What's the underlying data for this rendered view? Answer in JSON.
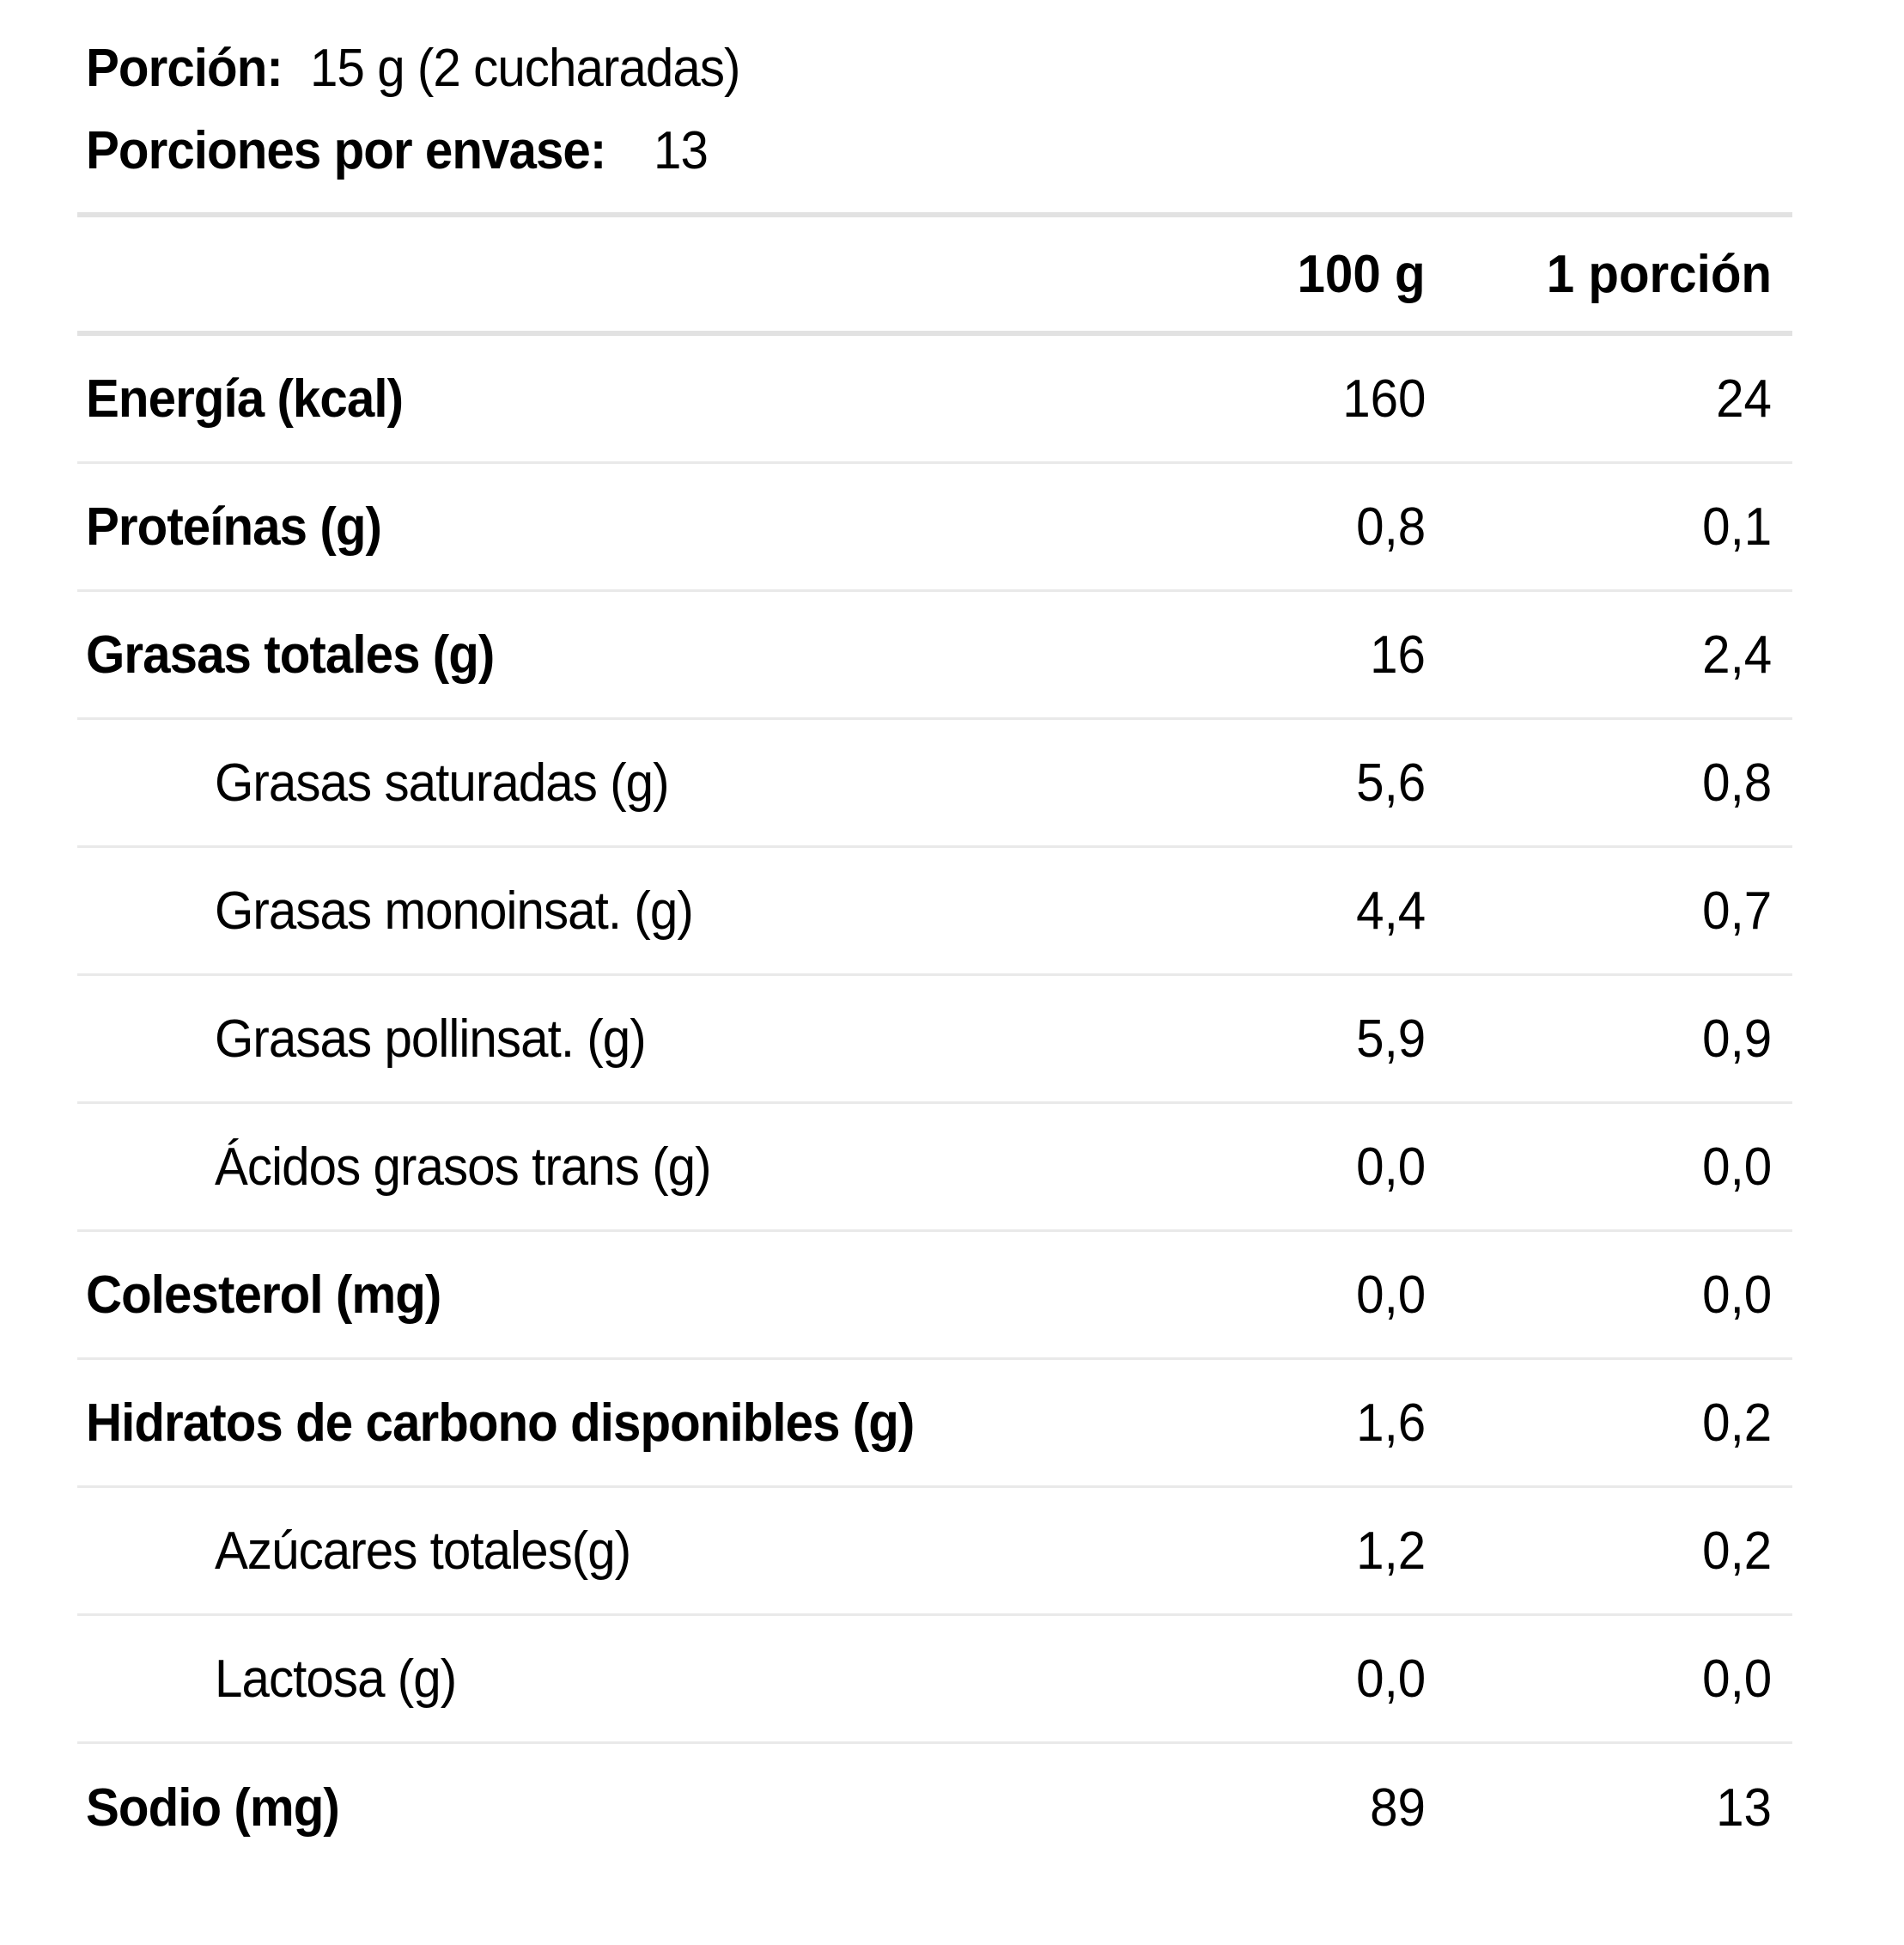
{
  "intro": {
    "portion_label": "Porción:",
    "portion_value": "15 g (2 cucharadas)",
    "servings_label": "Porciones por envase:",
    "servings_value": "13"
  },
  "table": {
    "columns": {
      "per100": "100 g",
      "perPortion": "1 porción"
    },
    "rows": [
      {
        "label": "Energía (kcal)",
        "per100": "160",
        "perPortion": "24",
        "sub": false
      },
      {
        "label": "Proteínas (g)",
        "per100": "0,8",
        "perPortion": "0,1",
        "sub": false
      },
      {
        "label": "Grasas totales (g)",
        "per100": "16",
        "perPortion": "2,4",
        "sub": false
      },
      {
        "label": "Grasas saturadas (g)",
        "per100": "5,6",
        "perPortion": "0,8",
        "sub": true
      },
      {
        "label": "Grasas monoinsat. (g)",
        "per100": "4,4",
        "perPortion": "0,7",
        "sub": true
      },
      {
        "label": "Grasas pollinsat. (g)",
        "per100": "5,9",
        "perPortion": "0,9",
        "sub": true
      },
      {
        "label": "Ácidos grasos trans (g)",
        "per100": "0,0",
        "perPortion": "0,0",
        "sub": true
      },
      {
        "label": "Colesterol (mg)",
        "per100": "0,0",
        "perPortion": "0,0",
        "sub": false
      },
      {
        "label": "Hidratos de carbono disponibles (g)",
        "per100": "1,6",
        "perPortion": "0,2",
        "sub": false
      },
      {
        "label": "Azúcares totales(g)",
        "per100": "1,2",
        "perPortion": "0,2",
        "sub": true
      },
      {
        "label": "Lactosa (g)",
        "per100": "0,0",
        "perPortion": "0,0",
        "sub": true
      },
      {
        "label": "Sodio (mg)",
        "per100": "89",
        "perPortion": "13",
        "sub": false
      }
    ]
  }
}
